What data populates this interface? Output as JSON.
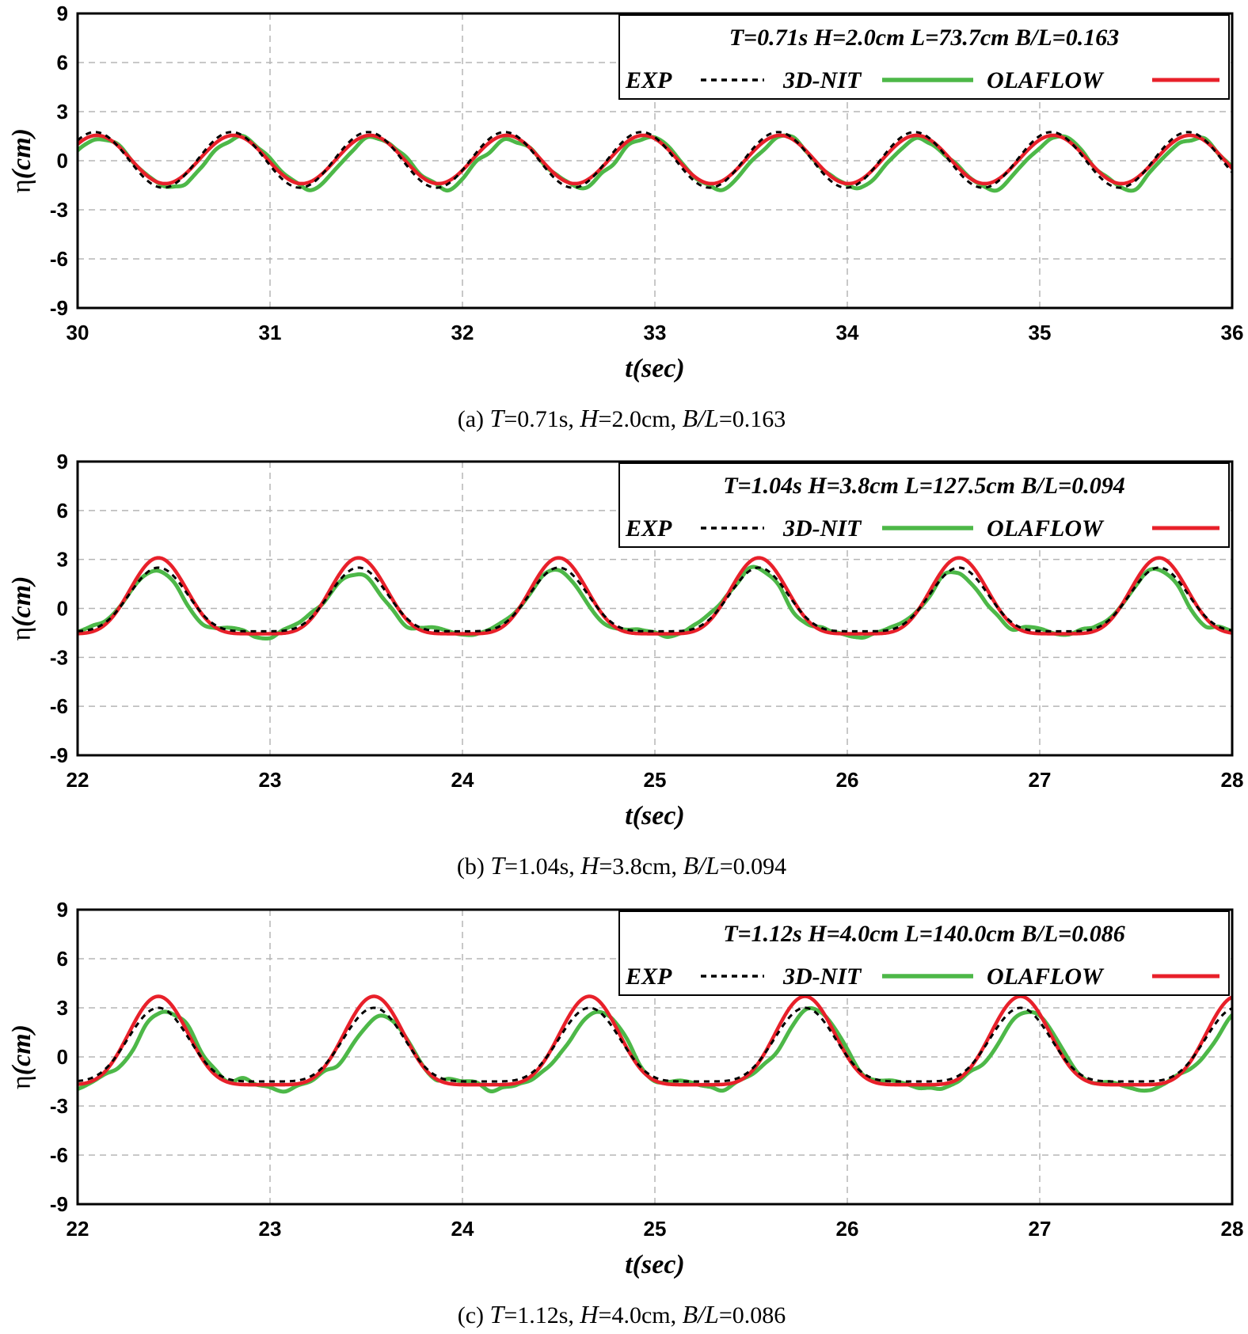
{
  "colors": {
    "exp": "#000000",
    "nit": "#4db848",
    "ola": "#e8202a",
    "grid": "#b5b5b5"
  },
  "legend_labels": {
    "exp": "EXP",
    "nit": "3D-NIT",
    "ola": "OLAFLOW"
  },
  "chart_data": [
    {
      "type": "line",
      "legend_title": "T=0.71s  H=2.0cm  L=73.7cm  B/L=0.163",
      "xlabel": "t(sec)",
      "ylabel_symbol": "η",
      "ylabel_unit": "(cm)",
      "xlim": [
        30,
        36
      ],
      "ylim": [
        -9,
        9
      ],
      "xticks": [
        "30",
        "31",
        "32",
        "33",
        "34",
        "35",
        "36"
      ],
      "yticks": [
        "9",
        "6",
        "3",
        "0",
        "-3",
        "-6",
        "-9"
      ],
      "caption": {
        "tag": "(a)",
        "T": "T",
        "T_val": "=0.71s,",
        "H": "H",
        "H_val": "=2.0cm,",
        "BL": "B/L",
        "BL_val": "=0.163"
      },
      "wave": {
        "period": 0.71,
        "x0": 30.1,
        "t_start": 30.0,
        "t_end": 36.0
      },
      "series": [
        {
          "name": "EXP",
          "crest": 1.75,
          "trough": -1.65,
          "skew": 0.0,
          "phase": -0.01,
          "noise": 0.0,
          "uneven": 0.0,
          "ripple": 0.0
        },
        {
          "name": "3D-NIT",
          "crest": 1.45,
          "trough": -1.65,
          "skew": 0.0,
          "phase": 0.025,
          "noise": 0.3,
          "uneven": 0.3,
          "ripple": 0.12
        },
        {
          "name": "OLAFLOW",
          "crest": 1.55,
          "trough": -1.4,
          "skew": 0.0,
          "phase": 0.0,
          "noise": 0.0,
          "uneven": 0.0,
          "ripple": 0.0
        }
      ]
    },
    {
      "type": "line",
      "legend_title": "T=1.04s  H=3.8cm  L=127.5cm  B/L=0.094",
      "xlabel": "t(sec)",
      "ylabel_symbol": "η",
      "ylabel_unit": "(cm)",
      "xlim": [
        22,
        28
      ],
      "ylim": [
        -9,
        9
      ],
      "xticks": [
        "22",
        "23",
        "24",
        "25",
        "26",
        "27",
        "28"
      ],
      "yticks": [
        "9",
        "6",
        "3",
        "0",
        "-3",
        "-6",
        "-9"
      ],
      "caption": {
        "tag": "(b)",
        "T": "T",
        "T_val": "=1.04s,",
        "H": "H",
        "H_val": "=3.8cm,",
        "BL": "B/L",
        "BL_val": "=0.094"
      },
      "wave": {
        "period": 1.04,
        "x0": 22.42,
        "t_start": 22.0,
        "t_end": 28.0
      },
      "series": [
        {
          "name": "EXP",
          "crest": 2.5,
          "trough": -1.4,
          "skew": 0.5,
          "phase": 0.0,
          "noise": 0.0,
          "uneven": 0.0,
          "ripple": 0.0
        },
        {
          "name": "3D-NIT",
          "crest": 2.3,
          "trough": -1.5,
          "skew": 0.5,
          "phase": -0.02,
          "noise": 0.3,
          "uneven": 0.15,
          "ripple": 0.22
        },
        {
          "name": "OLAFLOW",
          "crest": 3.1,
          "trough": -1.55,
          "skew": 0.55,
          "phase": 0.0,
          "noise": 0.0,
          "uneven": 0.0,
          "ripple": 0.0
        }
      ]
    },
    {
      "type": "line",
      "legend_title": "T=1.12s  H=4.0cm  L=140.0cm  B/L=0.086",
      "xlabel": "t(sec)",
      "ylabel_symbol": "η",
      "ylabel_unit": "(cm)",
      "xlim": [
        22,
        28
      ],
      "ylim": [
        -9,
        9
      ],
      "xticks": [
        "22",
        "23",
        "24",
        "25",
        "26",
        "27",
        "28"
      ],
      "yticks": [
        "9",
        "6",
        "3",
        "0",
        "-3",
        "-6",
        "-9"
      ],
      "caption": {
        "tag": "(c)",
        "T": "T",
        "T_val": "=1.12s,",
        "H": "H",
        "H_val": "=4.0cm,",
        "BL": "B/L",
        "BL_val": "=0.086"
      },
      "wave": {
        "period": 1.12,
        "x0": 22.42,
        "t_start": 22.0,
        "t_end": 28.0
      },
      "series": [
        {
          "name": "EXP",
          "crest": 3.0,
          "trough": -1.5,
          "skew": 0.55,
          "phase": 0.0,
          "noise": 0.0,
          "uneven": 0.0,
          "ripple": 0.0
        },
        {
          "name": "3D-NIT",
          "crest": 2.7,
          "trough": -1.75,
          "skew": 0.55,
          "phase": 0.04,
          "noise": 0.3,
          "uneven": 0.15,
          "ripple": 0.3
        },
        {
          "name": "OLAFLOW",
          "crest": 3.7,
          "trough": -1.7,
          "skew": 0.6,
          "phase": 0.0,
          "noise": 0.0,
          "uneven": 0.0,
          "ripple": 0.0
        }
      ]
    }
  ]
}
